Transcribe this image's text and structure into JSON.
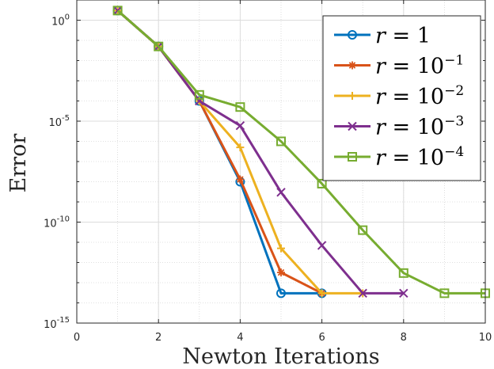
{
  "chart_data": {
    "type": "line",
    "xlabel": "Newton Iterations",
    "ylabel": "Error",
    "xlim": [
      0,
      10
    ],
    "ylim_log10": [
      -15,
      1
    ],
    "yscale": "log",
    "grid": true,
    "minor_grid": true,
    "legend_position": "top-right",
    "x_ticks": [
      0,
      2,
      4,
      6,
      8,
      10
    ],
    "y_ticks": [
      {
        "base": "10",
        "exp": "0",
        "log10": 0
      },
      {
        "base": "10",
        "exp": "-5",
        "log10": -5
      },
      {
        "base": "10",
        "exp": "-10",
        "log10": -10
      },
      {
        "base": "10",
        "exp": "-15",
        "log10": -15
      }
    ],
    "series": [
      {
        "name": "r = 1",
        "legend_lhs": "r",
        "legend_base": "1",
        "legend_exp": "",
        "color": "#0072BD",
        "marker": "circle",
        "x": [
          1,
          2,
          3,
          4,
          5,
          6
        ],
        "y": [
          "3e0",
          "5e-2",
          "1e-4",
          "1e-8",
          "3e-14",
          "3e-14"
        ]
      },
      {
        "name": "r = 10^-1",
        "legend_lhs": "r",
        "legend_base": "10",
        "legend_exp": "−1",
        "color": "#D95319",
        "marker": "asterisk",
        "x": [
          1,
          2,
          3,
          4,
          5,
          6
        ],
        "y": [
          "3e0",
          "5e-2",
          "1e-4",
          "1.3e-8",
          "3.2e-13",
          "3e-14"
        ]
      },
      {
        "name": "r = 10^-2",
        "legend_lhs": "r",
        "legend_base": "10",
        "legend_exp": "−2",
        "color": "#EDB120",
        "marker": "plus",
        "x": [
          1,
          2,
          3,
          4,
          5,
          6,
          7
        ],
        "y": [
          "3e0",
          "5e-2",
          "1e-4",
          "5e-7",
          "5e-12",
          "3e-14",
          "3e-14"
        ]
      },
      {
        "name": "r = 10^-3",
        "legend_lhs": "r",
        "legend_base": "10",
        "legend_exp": "−3",
        "color": "#7E2F8E",
        "marker": "cross",
        "x": [
          1,
          2,
          3,
          4,
          5,
          6,
          7,
          8
        ],
        "y": [
          "3e0",
          "5e-2",
          "1e-4",
          "6e-6",
          "3e-9",
          "7e-12",
          "3e-14",
          "3e-14"
        ]
      },
      {
        "name": "r = 10^-4",
        "legend_lhs": "r",
        "legend_base": "10",
        "legend_exp": "−4",
        "color": "#77AC30",
        "marker": "square",
        "x": [
          1,
          2,
          3,
          4,
          5,
          6,
          7,
          8,
          9,
          10
        ],
        "y": [
          "3e0",
          "5e-2",
          "2e-4",
          "5e-5",
          "1e-6",
          "8e-9",
          "4e-11",
          "3e-13",
          "3e-14",
          "3e-14"
        ]
      }
    ]
  }
}
